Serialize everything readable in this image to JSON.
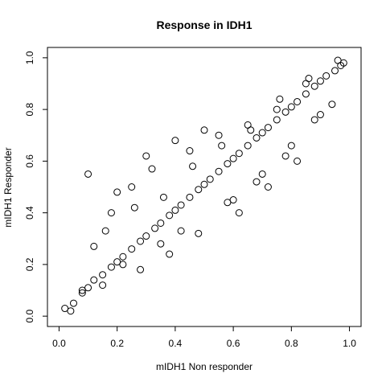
{
  "chart_data": {
    "type": "scatter",
    "title": "Response in IDH1",
    "xlabel": "mIDH1 Non responder",
    "ylabel": "mIDH1 Responder",
    "xlim": [
      -0.04,
      1.04
    ],
    "ylim": [
      -0.04,
      1.04
    ],
    "x_ticks": [
      "0.0",
      "0.2",
      "0.4",
      "0.6",
      "0.8",
      "1.0"
    ],
    "y_ticks": [
      "0.0",
      "0.2",
      "0.4",
      "0.6",
      "0.8",
      "1.0"
    ],
    "grid": false,
    "marker": "open-circle",
    "marker_color": "#000000",
    "x": [
      0.02,
      0.05,
      0.08,
      0.1,
      0.12,
      0.15,
      0.18,
      0.2,
      0.22,
      0.25,
      0.28,
      0.3,
      0.33,
      0.35,
      0.38,
      0.4,
      0.42,
      0.45,
      0.48,
      0.5,
      0.52,
      0.55,
      0.58,
      0.6,
      0.62,
      0.65,
      0.68,
      0.7,
      0.72,
      0.75,
      0.78,
      0.8,
      0.82,
      0.85,
      0.88,
      0.9,
      0.92,
      0.95,
      0.97,
      0.98,
      0.1,
      0.2,
      0.3,
      0.4,
      0.5,
      0.6,
      0.7,
      0.8,
      0.9,
      0.12,
      0.18,
      0.25,
      0.32,
      0.45,
      0.55,
      0.65,
      0.75,
      0.85,
      0.15,
      0.22,
      0.35,
      0.42,
      0.58,
      0.68,
      0.78,
      0.88,
      0.08,
      0.28,
      0.38,
      0.48,
      0.62,
      0.72,
      0.82,
      0.94,
      0.16,
      0.26,
      0.36,
      0.46,
      0.56,
      0.66,
      0.76,
      0.86,
      0.96,
      0.04
    ],
    "y": [
      0.03,
      0.05,
      0.09,
      0.11,
      0.14,
      0.16,
      0.19,
      0.21,
      0.23,
      0.26,
      0.29,
      0.31,
      0.34,
      0.36,
      0.39,
      0.41,
      0.43,
      0.46,
      0.49,
      0.51,
      0.53,
      0.56,
      0.59,
      0.61,
      0.63,
      0.66,
      0.69,
      0.71,
      0.73,
      0.76,
      0.79,
      0.81,
      0.83,
      0.86,
      0.89,
      0.91,
      0.93,
      0.95,
      0.97,
      0.98,
      0.55,
      0.48,
      0.62,
      0.68,
      0.72,
      0.45,
      0.55,
      0.66,
      0.78,
      0.27,
      0.4,
      0.5,
      0.57,
      0.64,
      0.7,
      0.74,
      0.8,
      0.9,
      0.12,
      0.2,
      0.28,
      0.33,
      0.44,
      0.52,
      0.62,
      0.76,
      0.1,
      0.18,
      0.24,
      0.32,
      0.4,
      0.5,
      0.6,
      0.82,
      0.33,
      0.42,
      0.46,
      0.58,
      0.66,
      0.72,
      0.84,
      0.92,
      0.99,
      0.02
    ]
  }
}
